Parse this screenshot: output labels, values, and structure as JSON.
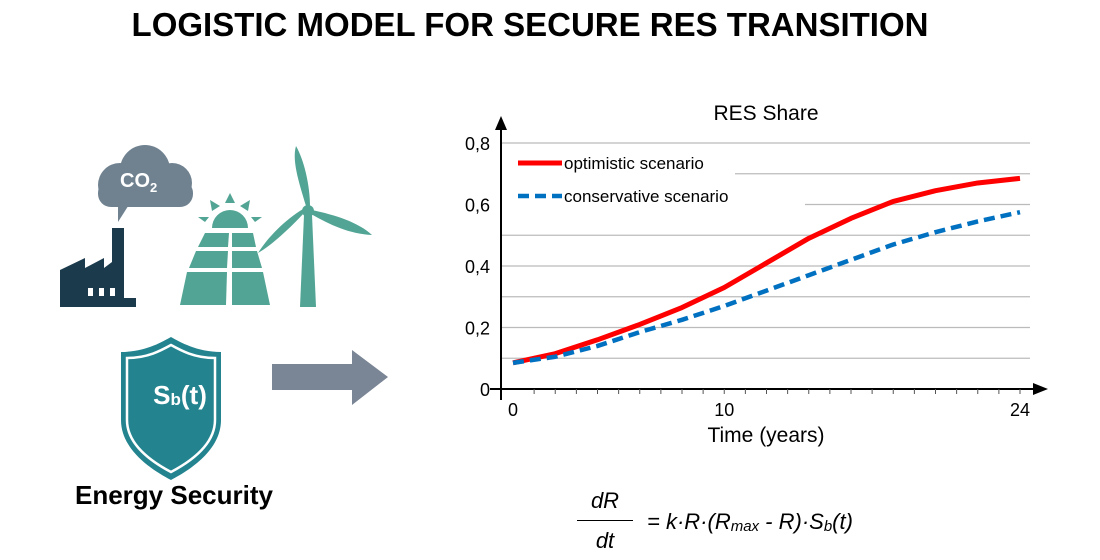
{
  "title": "LOGISTIC MODEL FOR SECURE RES TRANSITION",
  "icons": {
    "cloud_label": "CO",
    "cloud_sub": "2",
    "shield_label": "S",
    "shield_sub": "b",
    "shield_tail": "(t)"
  },
  "energy_security_label": "Energy Security",
  "formula": {
    "numerator": "dR",
    "denominator": "dt",
    "rhs_pre": "= k·R·(R",
    "rhs_sub": "max",
    "rhs_mid": " - R)·S",
    "rhs_sub2": "b",
    "rhs_post": "(t)"
  },
  "colors": {
    "factory": "#1b3a4b",
    "renewables": "#52a595",
    "cloud": "#708290",
    "shield": "#23848f",
    "arrow": "#7a8595",
    "optimistic": "#ff0000",
    "conservative": "#0070c0"
  },
  "chart_data": {
    "type": "line",
    "title": "RES Share",
    "xlabel": "Time (years)",
    "ylabel": "",
    "xlim": [
      0,
      24
    ],
    "ylim": [
      0,
      0.8
    ],
    "x_ticks": [
      "0",
      "10",
      "24"
    ],
    "y_ticks": [
      "0",
      "0,2",
      "0,4",
      "0,6",
      "0,8"
    ],
    "grid": true,
    "legend": "top-left",
    "x": [
      0,
      2,
      4,
      6,
      8,
      10,
      12,
      14,
      16,
      18,
      20,
      22,
      24
    ],
    "series": [
      {
        "name": "optimistic scenario",
        "style": "solid",
        "values": [
          0.085,
          0.115,
          0.16,
          0.21,
          0.265,
          0.33,
          0.41,
          0.49,
          0.555,
          0.61,
          0.645,
          0.67,
          0.685
        ]
      },
      {
        "name": "conservative scenario",
        "style": "dashed",
        "values": [
          0.085,
          0.105,
          0.14,
          0.185,
          0.225,
          0.27,
          0.32,
          0.37,
          0.42,
          0.47,
          0.51,
          0.545,
          0.575
        ]
      }
    ]
  }
}
